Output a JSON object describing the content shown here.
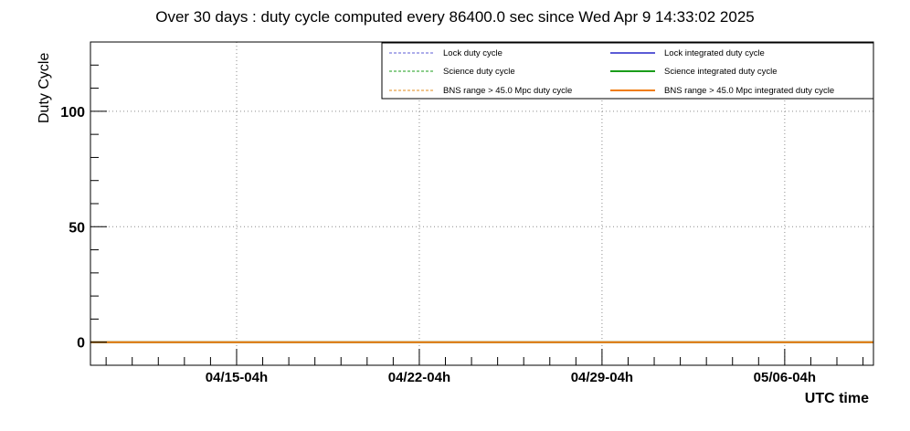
{
  "chart_data": {
    "type": "line",
    "title": "Over 30 days : duty cycle computed every 86400.0 sec since Wed Apr  9 14:33:02 2025",
    "xlabel": "UTC time",
    "ylabel": "Duty Cycle",
    "xlim_days": [
      0,
      30
    ],
    "ylim": [
      -10,
      130
    ],
    "yticks": [
      0,
      50,
      100
    ],
    "xticks": [
      {
        "label": "04/15-04h",
        "day": 5.6
      },
      {
        "label": "04/22-04h",
        "day": 12.6
      },
      {
        "label": "04/29-04h",
        "day": 19.6
      },
      {
        "label": "05/06-04h",
        "day": 26.6
      }
    ],
    "grid": true,
    "legend_position": "top-right",
    "series": [
      {
        "name": "Lock duty cycle",
        "color": "#5b5bd6",
        "style": "dashed",
        "x": [
          0,
          30
        ],
        "y": [
          0,
          0
        ]
      },
      {
        "name": "Science duty cycle",
        "color": "#1a9c1a",
        "style": "dashed",
        "x": [
          0,
          30
        ],
        "y": [
          0,
          0
        ]
      },
      {
        "name": "BNS range > 45.0 Mpc duty cycle",
        "color": "#e08a1a",
        "style": "dashed",
        "x": [
          0,
          30
        ],
        "y": [
          0,
          0
        ]
      },
      {
        "name": "Lock integrated duty cycle",
        "color": "#5b5bd6",
        "style": "solid",
        "x": [
          0,
          30
        ],
        "y": [
          0,
          0
        ]
      },
      {
        "name": "Science integrated duty cycle",
        "color": "#1a9c1a",
        "style": "solid",
        "x": [
          0,
          30
        ],
        "y": [
          0,
          0
        ]
      },
      {
        "name": "BNS range > 45.0 Mpc integrated duty cycle",
        "color": "#f07c10",
        "style": "solid",
        "x": [
          0,
          30
        ],
        "y": [
          0,
          0
        ]
      }
    ]
  }
}
